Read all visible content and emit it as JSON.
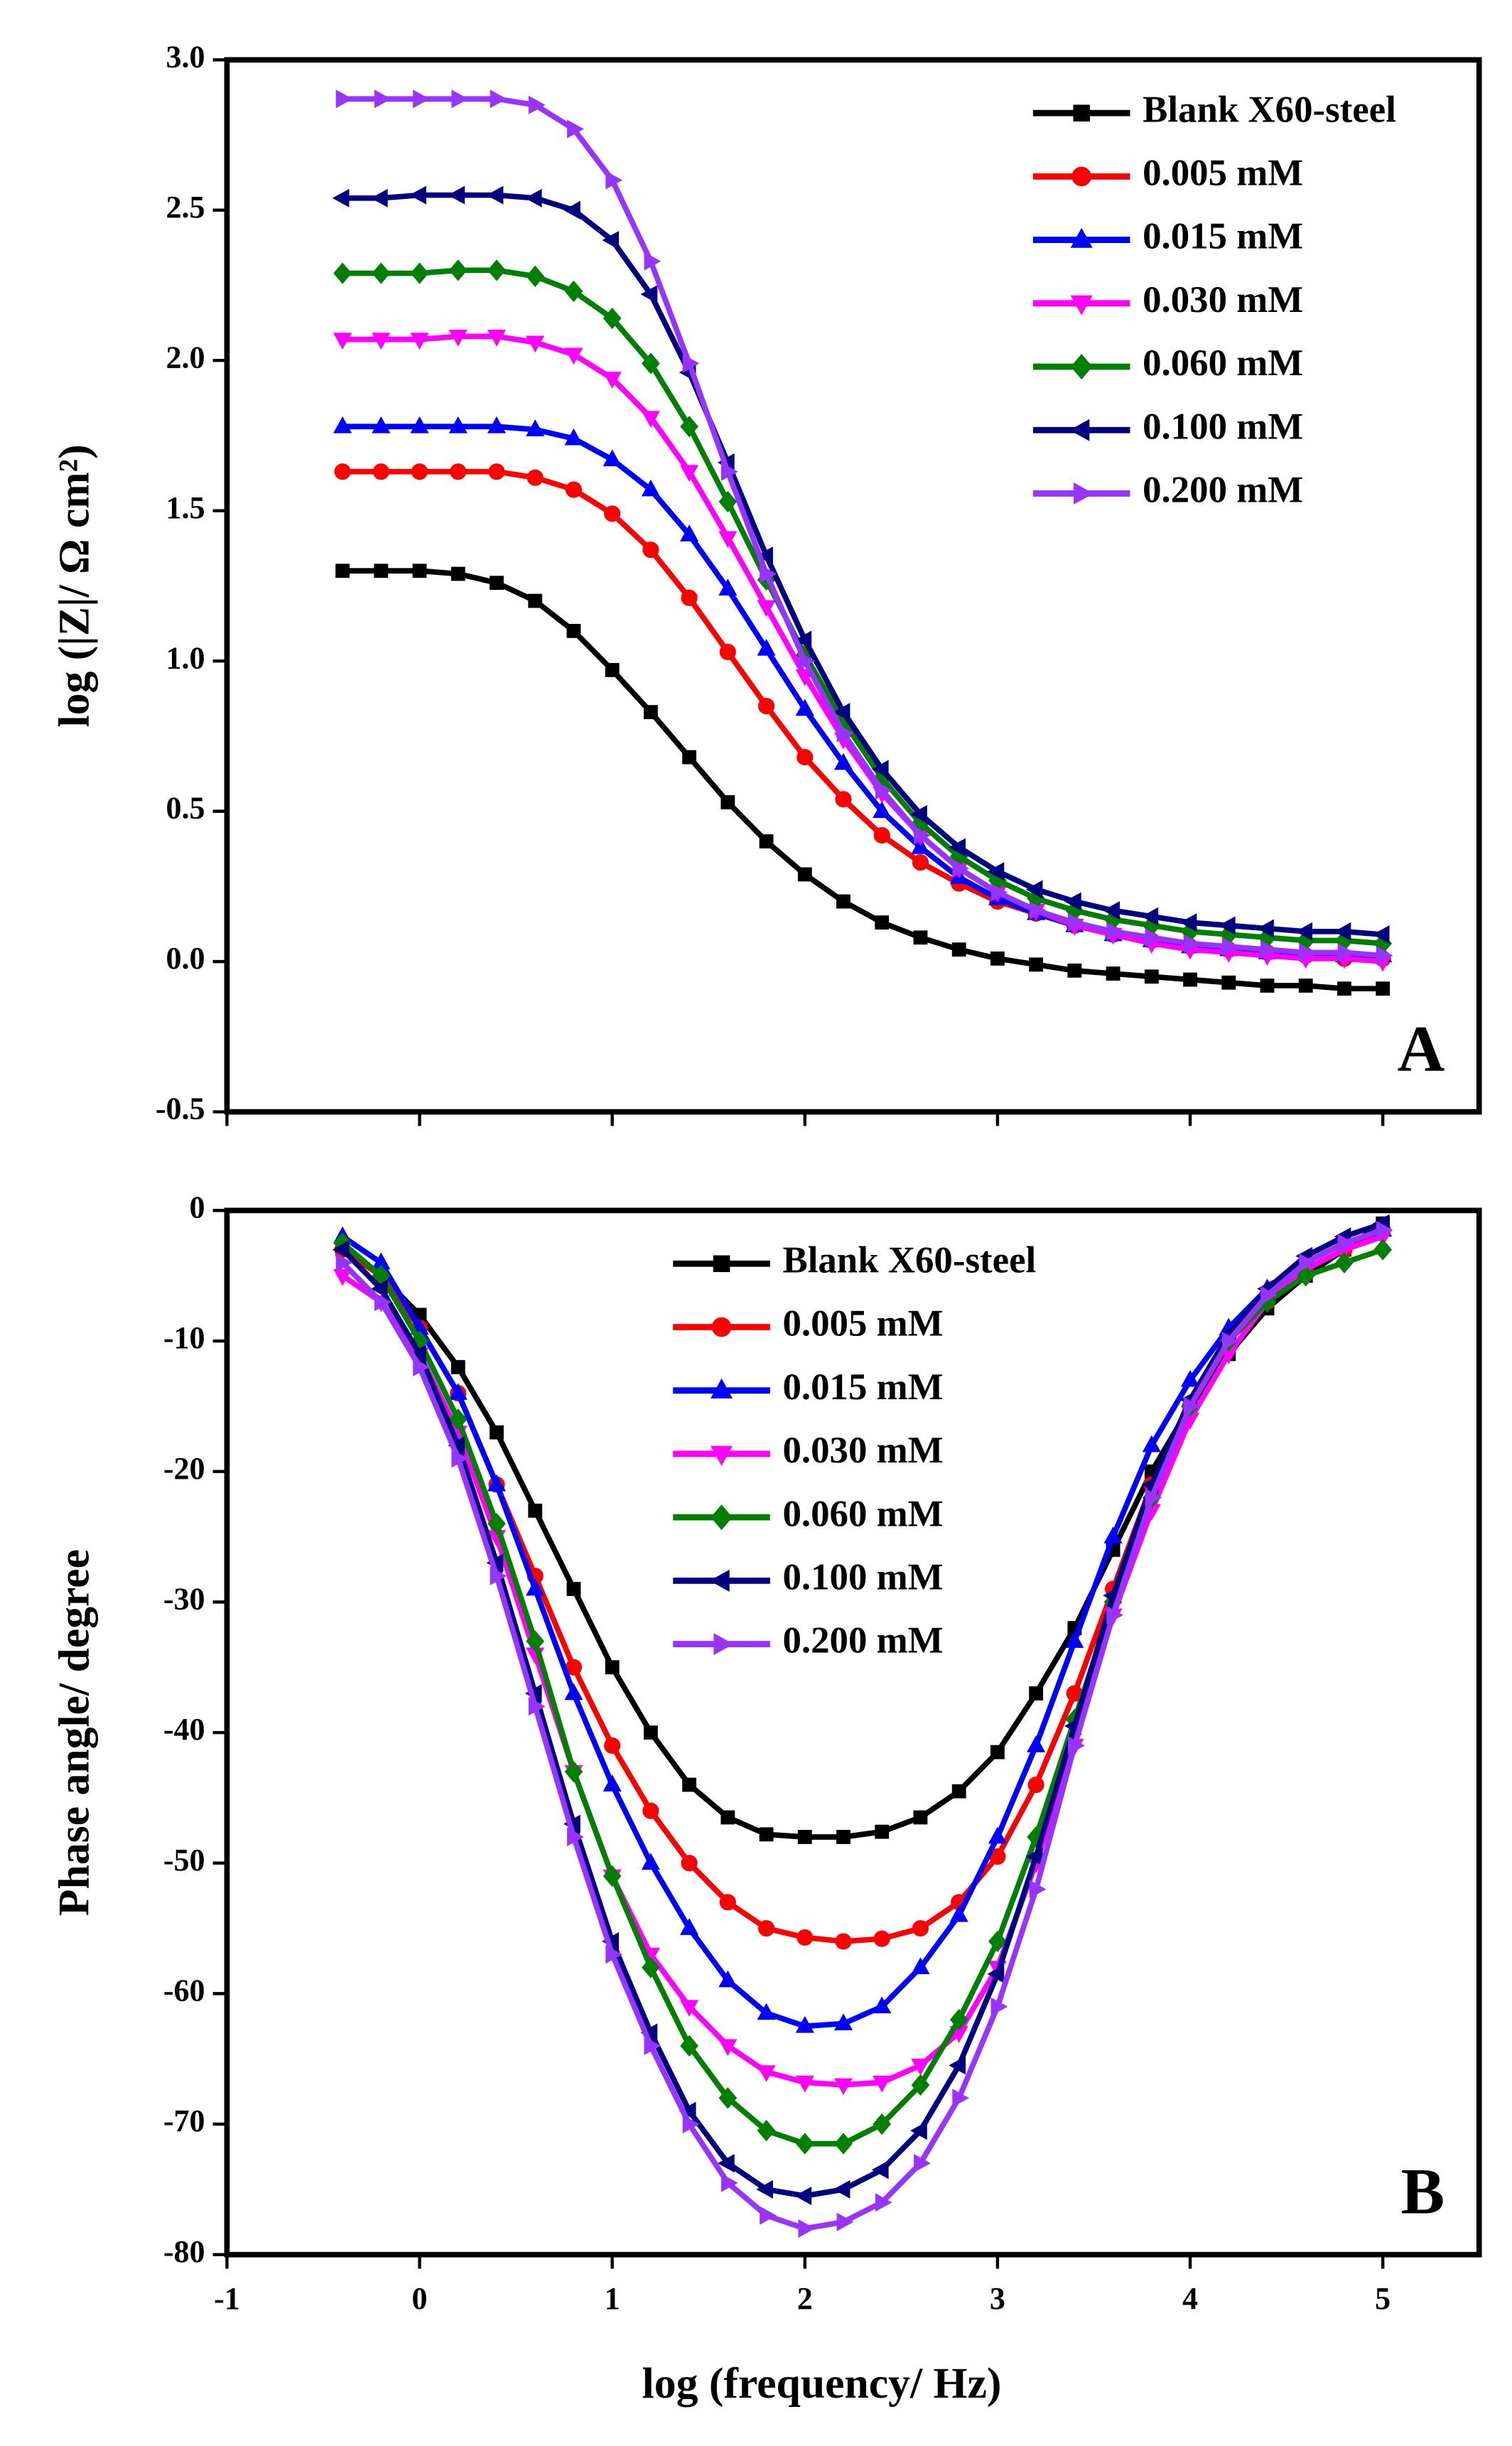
{
  "chart_data": [
    {
      "type": "line",
      "panel_label": "A",
      "ylabel": "log (|Z|/ Ω cm²)",
      "xlim": [
        -1,
        5.5
      ],
      "ylim": [
        -0.5,
        3.0
      ],
      "yticks": [
        -0.5,
        {
          "value": 0,
          "label": "0.0"
        },
        0.5,
        {
          "value": 1,
          "label": "1.0"
        },
        1.5,
        {
          "value": 2,
          "label": "2.0"
        },
        2.5,
        {
          "value": 3,
          "label": "3.0"
        }
      ],
      "legend": "upper right",
      "x": [
        -0.4,
        -0.2,
        0,
        0.2,
        0.4,
        0.6,
        0.8,
        1.0,
        1.2,
        1.4,
        1.6,
        1.8,
        2.0,
        2.2,
        2.4,
        2.6,
        2.8,
        3.0,
        3.2,
        3.4,
        3.6,
        3.8,
        4.0,
        4.2,
        4.4,
        4.6,
        4.8,
        5.0
      ],
      "series": [
        {
          "name": "Blank X60-steel",
          "color": "#000000",
          "marker": "square",
          "values": [
            1.3,
            1.3,
            1.3,
            1.29,
            1.26,
            1.2,
            1.1,
            0.97,
            0.83,
            0.68,
            0.53,
            0.4,
            0.29,
            0.2,
            0.13,
            0.08,
            0.04,
            0.01,
            -0.01,
            -0.03,
            -0.04,
            -0.05,
            -0.06,
            -0.07,
            -0.08,
            -0.08,
            -0.09,
            -0.09
          ]
        },
        {
          "name": "0.005 mM",
          "color": "#ff0000",
          "marker": "circle",
          "values": [
            1.63,
            1.63,
            1.63,
            1.63,
            1.63,
            1.61,
            1.57,
            1.49,
            1.37,
            1.21,
            1.03,
            0.85,
            0.68,
            0.54,
            0.42,
            0.33,
            0.26,
            0.2,
            0.16,
            0.12,
            0.09,
            0.07,
            0.05,
            0.04,
            0.03,
            0.02,
            0.01,
            0.01
          ]
        },
        {
          "name": "0.015 mM",
          "color": "#0000ff",
          "marker": "triangle-up",
          "values": [
            1.78,
            1.78,
            1.78,
            1.78,
            1.78,
            1.77,
            1.74,
            1.67,
            1.57,
            1.42,
            1.24,
            1.04,
            0.84,
            0.66,
            0.5,
            0.38,
            0.28,
            0.21,
            0.16,
            0.12,
            0.09,
            0.07,
            0.05,
            0.04,
            0.03,
            0.03,
            0.02,
            0.02
          ]
        },
        {
          "name": "0.030 mM",
          "color": "#ff00ff",
          "marker": "triangle-down",
          "values": [
            2.07,
            2.07,
            2.07,
            2.08,
            2.08,
            2.06,
            2.02,
            1.94,
            1.81,
            1.63,
            1.41,
            1.18,
            0.95,
            0.74,
            0.56,
            0.42,
            0.31,
            0.23,
            0.17,
            0.12,
            0.09,
            0.06,
            0.04,
            0.03,
            0.02,
            0.01,
            0.01,
            0.0
          ]
        },
        {
          "name": "0.060 mM",
          "color": "#008000",
          "marker": "diamond",
          "values": [
            2.29,
            2.29,
            2.29,
            2.3,
            2.3,
            2.28,
            2.23,
            2.14,
            1.99,
            1.78,
            1.53,
            1.27,
            1.02,
            0.8,
            0.61,
            0.46,
            0.35,
            0.27,
            0.21,
            0.17,
            0.14,
            0.12,
            0.1,
            0.09,
            0.08,
            0.07,
            0.07,
            0.06
          ]
        },
        {
          "name": "0.100 mM",
          "color": "#000080",
          "marker": "triangle-left",
          "values": [
            2.54,
            2.54,
            2.55,
            2.55,
            2.55,
            2.54,
            2.5,
            2.4,
            2.22,
            1.96,
            1.66,
            1.35,
            1.07,
            0.83,
            0.64,
            0.49,
            0.38,
            0.3,
            0.24,
            0.2,
            0.17,
            0.15,
            0.13,
            0.12,
            0.11,
            0.1,
            0.1,
            0.09
          ]
        },
        {
          "name": "0.200 mM",
          "color": "#9933ff",
          "marker": "triangle-right",
          "values": [
            2.87,
            2.87,
            2.87,
            2.87,
            2.87,
            2.85,
            2.77,
            2.6,
            2.33,
            1.99,
            1.63,
            1.29,
            1.0,
            0.76,
            0.57,
            0.42,
            0.31,
            0.23,
            0.17,
            0.13,
            0.1,
            0.08,
            0.06,
            0.05,
            0.04,
            0.03,
            0.03,
            0.02
          ]
        }
      ]
    },
    {
      "type": "line",
      "panel_label": "B",
      "ylabel": "Phase angle/ degree",
      "xlabel": "log (frequency/ Hz)",
      "xlim": [
        -1,
        5.5
      ],
      "ylim": [
        -80,
        0
      ],
      "xticks": [
        -1,
        0,
        1,
        2,
        3,
        4,
        5
      ],
      "yticks": [
        -80,
        -70,
        -60,
        -50,
        -40,
        -30,
        -20,
        -10,
        0
      ],
      "legend": "upper center",
      "x": [
        -0.4,
        -0.2,
        0,
        0.2,
        0.4,
        0.6,
        0.8,
        1.0,
        1.2,
        1.4,
        1.6,
        1.8,
        2.0,
        2.2,
        2.4,
        2.6,
        2.8,
        3.0,
        3.2,
        3.4,
        3.6,
        3.8,
        4.0,
        4.2,
        4.4,
        4.6,
        4.8,
        5.0
      ],
      "series": [
        {
          "name": "Blank X60-steel",
          "color": "#000000",
          "marker": "square",
          "values": [
            -3,
            -5,
            -8,
            -12,
            -17,
            -23,
            -29,
            -35,
            -40,
            -44,
            -46.5,
            -47.8,
            -48,
            -48,
            -47.6,
            -46.5,
            -44.5,
            -41.5,
            -37,
            -32,
            -26,
            -20,
            -15,
            -11,
            -7.5,
            -5,
            -3,
            -1
          ]
        },
        {
          "name": "0.005 mM",
          "color": "#ff0000",
          "marker": "circle",
          "values": [
            -3,
            -5,
            -9,
            -14,
            -21,
            -28,
            -35,
            -41,
            -46,
            -50,
            -53,
            -55,
            -55.7,
            -56,
            -55.8,
            -55,
            -53,
            -49.5,
            -44,
            -37,
            -29,
            -21,
            -15,
            -10,
            -7,
            -4.5,
            -3,
            -1.5
          ]
        },
        {
          "name": "0.015 mM",
          "color": "#0000ff",
          "marker": "triangle-up",
          "values": [
            -2,
            -4,
            -9,
            -14,
            -21,
            -29,
            -37,
            -44,
            -50,
            -55,
            -59,
            -61.5,
            -62.5,
            -62.3,
            -61,
            -58,
            -54,
            -48,
            -41,
            -33,
            -25,
            -18,
            -13,
            -9,
            -6,
            -4,
            -2.5,
            -1.5
          ]
        },
        {
          "name": "0.030 mM",
          "color": "#ff00ff",
          "marker": "triangle-down",
          "values": [
            -5,
            -7,
            -11,
            -17,
            -25,
            -34,
            -43,
            -51,
            -57,
            -61,
            -64,
            -66,
            -66.8,
            -67,
            -66.8,
            -65.5,
            -63,
            -58,
            -50,
            -41,
            -31,
            -23,
            -16,
            -11,
            -7,
            -4.5,
            -3,
            -2
          ]
        },
        {
          "name": "0.060 mM",
          "color": "#008000",
          "marker": "diamond",
          "values": [
            -2.5,
            -5,
            -10,
            -16,
            -24,
            -33,
            -43,
            -51,
            -58,
            -64,
            -68,
            -70.5,
            -71.5,
            -71.5,
            -70,
            -67,
            -62,
            -56,
            -48,
            -39,
            -30,
            -22,
            -15,
            -10,
            -7,
            -5,
            -4,
            -3
          ]
        },
        {
          "name": "0.100 mM",
          "color": "#000080",
          "marker": "triangle-left",
          "values": [
            -3,
            -6,
            -11,
            -18,
            -27,
            -37,
            -47,
            -56,
            -63,
            -69,
            -73,
            -75,
            -75.5,
            -75,
            -73.5,
            -70.5,
            -65.5,
            -58.5,
            -49.5,
            -39.5,
            -29.5,
            -21,
            -14.5,
            -9.5,
            -6,
            -3.5,
            -2,
            -1
          ]
        },
        {
          "name": "0.200 mM",
          "color": "#9933ff",
          "marker": "triangle-right",
          "values": [
            -4,
            -7,
            -12,
            -19,
            -28,
            -38,
            -48,
            -57,
            -64,
            -70,
            -74.5,
            -77,
            -78,
            -77.5,
            -76,
            -73,
            -68,
            -61,
            -52,
            -41,
            -31,
            -22,
            -15,
            -10,
            -6.5,
            -4,
            -2.5,
            -1.5
          ]
        }
      ]
    }
  ]
}
